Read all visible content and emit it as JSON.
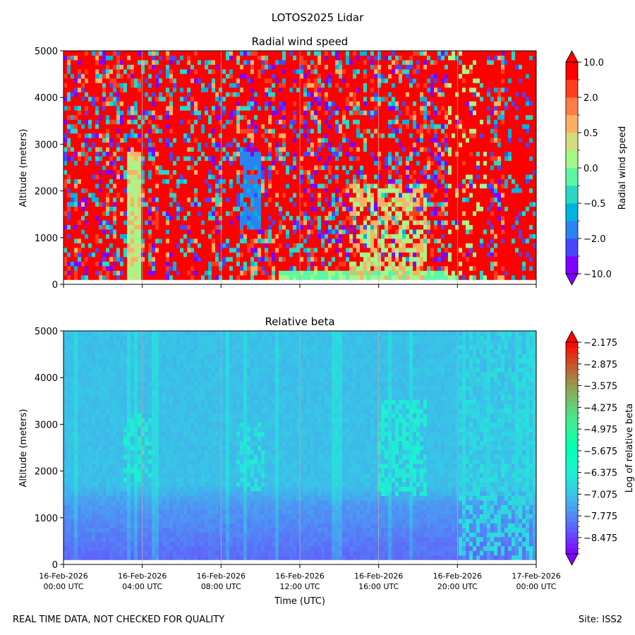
{
  "figure": {
    "suptitle": "LOTOS2025 Lidar",
    "footer_left": "REAL TIME DATA, NOT CHECKED FOR QUALITY",
    "footer_right": "Site: ISS2"
  },
  "chart_data": [
    {
      "type": "heatmap",
      "title": "Radial wind speed",
      "xlabel": "",
      "ylabel": "Altitude (meters)",
      "ylim": [
        0,
        5000
      ],
      "yticks": [
        0,
        1000,
        2000,
        3000,
        4000,
        5000
      ],
      "xlim_hours": [
        0,
        24
      ],
      "xticks_hours": [
        0,
        4,
        8,
        12,
        16,
        20,
        24
      ],
      "xtick_labels_shown": false,
      "grid": "vertical",
      "data_min_altitude": 100,
      "colorbar": {
        "label": "Radial wind speed",
        "levels": [
          -10.0,
          -5.0,
          -2.0,
          -1.0,
          -0.5,
          -0.2,
          0.0,
          0.2,
          0.5,
          1.0,
          2.0,
          5.0,
          10.0
        ],
        "tick_labels": [
          "10.0",
          "2.0",
          "0.5",
          "0.0",
          "−0.5",
          "−2.0",
          "−10.0"
        ],
        "tick_values": [
          10.0,
          2.0,
          0.5,
          0.0,
          -0.5,
          -2.0,
          -10.0
        ],
        "colors": [
          "#7f00ff",
          "#4b45fb",
          "#2a84f0",
          "#00b4e0",
          "#2ad8c4",
          "#5cf7a5",
          "#a4f789",
          "#d4dc7f",
          "#fdb064",
          "#ff7e45",
          "#ff3e1e",
          "#ff0000"
        ],
        "extend": "both"
      },
      "features": [
        {
          "name": "near-zero mixed band",
          "hours": [
            3.2,
            4.0
          ],
          "altitude": [
            100,
            2800
          ]
        },
        {
          "name": "downward flow region",
          "hours": [
            9.0,
            10.0
          ],
          "altitude": [
            1200,
            2800
          ]
        },
        {
          "name": "low-level near-zero layer",
          "hours": [
            11.0,
            20.0
          ],
          "altitude": [
            100,
            250
          ]
        },
        {
          "name": "afternoon convective region",
          "hours": [
            14.5,
            18.5
          ],
          "altitude": [
            100,
            2200
          ]
        },
        {
          "name": "evening positive bands",
          "hours": [
            19.5,
            21.5
          ],
          "altitude": [
            100,
            5000
          ]
        }
      ]
    },
    {
      "type": "heatmap",
      "title": "Relative beta",
      "xlabel": "Time (UTC)",
      "ylabel": "Altitude (meters)",
      "ylim": [
        0,
        5000
      ],
      "yticks": [
        0,
        1000,
        2000,
        3000,
        4000,
        5000
      ],
      "xlim_hours": [
        0,
        24
      ],
      "xticks_hours": [
        0,
        4,
        8,
        12,
        16,
        20,
        24
      ],
      "xtick_labels": [
        [
          "16-Feb-2026",
          "00:00 UTC"
        ],
        [
          "16-Feb-2026",
          "04:00 UTC"
        ],
        [
          "16-Feb-2026",
          "08:00 UTC"
        ],
        [
          "16-Feb-2026",
          "12:00 UTC"
        ],
        [
          "16-Feb-2026",
          "16:00 UTC"
        ],
        [
          "16-Feb-2026",
          "20:00 UTC"
        ],
        [
          "17-Feb-2026",
          "00:00 UTC"
        ]
      ],
      "grid": "vertical",
      "data_min_altitude": 100,
      "colorbar": {
        "label": "Log of relative beta",
        "range": [
          -9.0,
          -2.175
        ],
        "tick_labels": [
          "−2.175",
          "−2.875",
          "−3.575",
          "−4.275",
          "−4.975",
          "−5.675",
          "−6.375",
          "−7.075",
          "−7.775",
          "−8.475"
        ],
        "tick_values": [
          -2.175,
          -2.875,
          -3.575,
          -4.275,
          -4.975,
          -5.675,
          -6.375,
          -7.075,
          -7.775,
          -8.475
        ],
        "extend": "both",
        "colormap": "rainbow"
      },
      "features": [
        {
          "name": "background aloft",
          "hours": [
            0,
            24
          ],
          "altitude": [
            1500,
            5000
          ],
          "value": -7.1
        },
        {
          "name": "boundary layer low values",
          "hours": [
            0,
            24
          ],
          "altitude": [
            100,
            1300
          ],
          "value": -8.1
        },
        {
          "name": "cloud patches",
          "hours": [
            3.0,
            4.5
          ],
          "altitude": [
            1800,
            3200
          ],
          "value": -6.4
        },
        {
          "name": "aerosol layer",
          "hours": [
            8.8,
            10.2
          ],
          "altitude": [
            1600,
            3000
          ],
          "value": -6.6
        },
        {
          "name": "convective plumes",
          "hours": [
            16.0,
            18.5
          ],
          "altitude": [
            1500,
            3500
          ],
          "value": -6.4
        },
        {
          "name": "evening columns",
          "hours": [
            20.0,
            23.8
          ],
          "altitude": [
            100,
            5000
          ],
          "value": -6.8
        }
      ]
    }
  ]
}
